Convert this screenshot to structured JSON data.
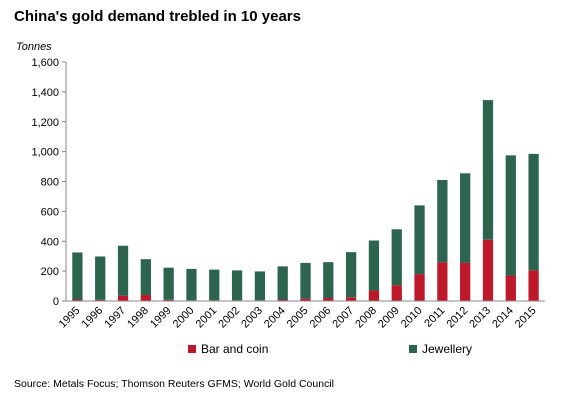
{
  "chart_data": {
    "type": "bar",
    "stacked": true,
    "title": "China's gold demand trebled in 10 years",
    "ylabel": "Tonnes",
    "xlabel": "",
    "ylim": [
      0,
      1600
    ],
    "yticks": [
      "0",
      "200",
      "400",
      "600",
      "800",
      "1,000",
      "1,200",
      "1,400",
      "1,600"
    ],
    "categories": [
      "1995",
      "1996",
      "1997",
      "1998",
      "1999",
      "2000",
      "2001",
      "2002",
      "2003",
      "2004",
      "2005",
      "2006",
      "2007",
      "2008",
      "2009",
      "2010",
      "2011",
      "2012",
      "2013",
      "2014",
      "2015"
    ],
    "series": [
      {
        "name": "Bar and coin",
        "color": "#c0182b",
        "values": [
          10,
          8,
          35,
          40,
          8,
          5,
          5,
          5,
          5,
          10,
          15,
          20,
          25,
          70,
          105,
          180,
          260,
          255,
          410,
          170,
          205
        ]
      },
      {
        "name": "Jewellery",
        "color": "#2d6450",
        "values": [
          315,
          290,
          335,
          240,
          215,
          210,
          205,
          200,
          193,
          222,
          240,
          240,
          302,
          335,
          375,
          460,
          550,
          600,
          935,
          805,
          780
        ]
      }
    ],
    "legend": "bottom",
    "grid": false
  },
  "source": "Source: Metals Focus; Thomson Reuters GFMS; World Gold Council"
}
